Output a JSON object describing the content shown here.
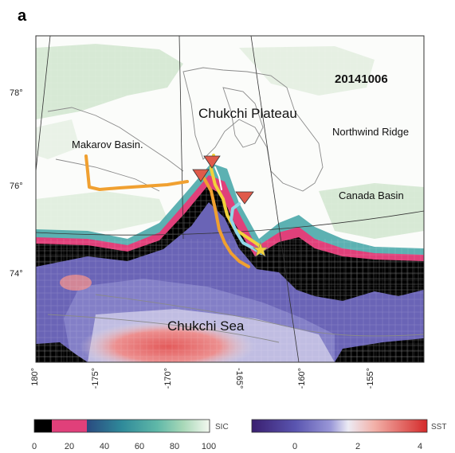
{
  "figure": {
    "panel_letter": "a",
    "date": "20141006"
  },
  "places": {
    "chukchi_plateau": "Chukchi Plateau",
    "makarov_basin": "Makarov Basin.",
    "northwind_ridge": "Northwind Ridge",
    "canada_basin": "Canada Basin",
    "chukchi_sea": "Chukchi Sea"
  },
  "lat_ticks": [
    "78°",
    "76°",
    "74°"
  ],
  "lon_ticks": [
    "180°",
    "-175°",
    "-170°",
    "-165°",
    "-160°",
    "-155°"
  ],
  "colorbar_sic": {
    "label": "SIC",
    "ticks": [
      "0",
      "20",
      "40",
      "60",
      "80",
      "100"
    ]
  },
  "colorbar_sst": {
    "label": "SST",
    "ticks": [
      "0",
      "2",
      "4"
    ]
  },
  "colors": {
    "black_ice_edge": "#000000",
    "pink_band": "#e0407a",
    "low_sic_teal": "#3fa3a5",
    "high_sic": "#e6efe6",
    "sea_purple": "#6a64b6",
    "sst_warm": "#e46a6a",
    "track_orange": "#f0a030",
    "track_yellow": "#f2d23a",
    "track_cyan": "#8fd8e8",
    "marker_red": "#e05a4a"
  }
}
